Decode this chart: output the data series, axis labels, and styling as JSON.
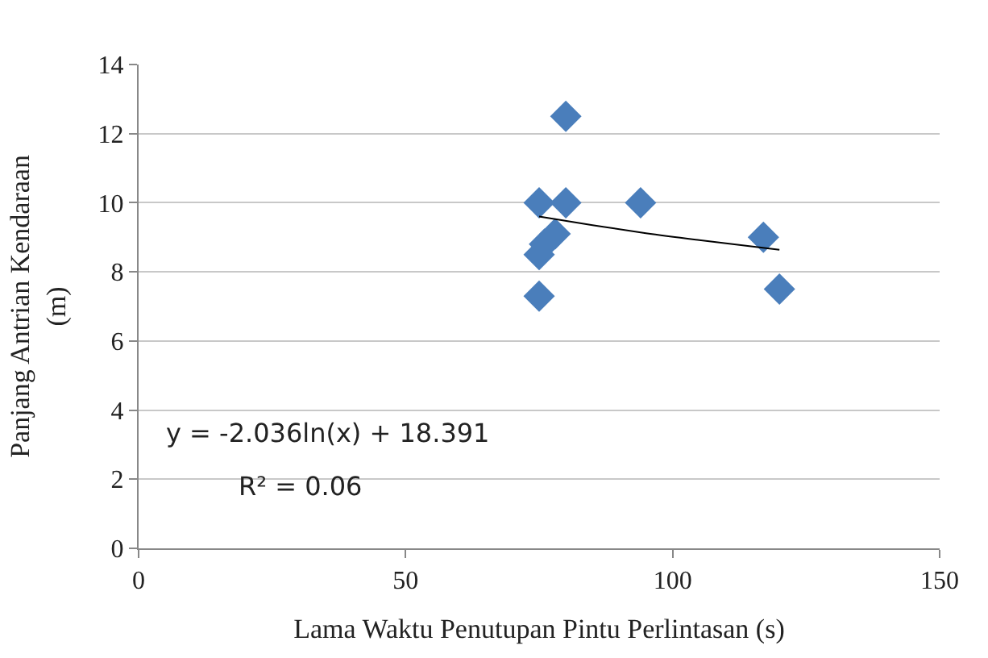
{
  "chart_data": {
    "type": "scatter",
    "xlabel": "Lama Waktu Penutupan Pintu Perlintasan (s)",
    "ylabel": "Panjang Antrian Kendaraan (m)",
    "xlim": [
      0,
      150
    ],
    "xticks": [
      0,
      50,
      100,
      150
    ],
    "ylim": [
      0,
      14
    ],
    "yticks": [
      0,
      2,
      4,
      6,
      8,
      10,
      12,
      14
    ],
    "grid": "y",
    "series": [
      {
        "marker": "diamond",
        "color": "#4a7ebb",
        "x": [
          80,
          75,
          80,
          94,
          117,
          120,
          75,
          75,
          76,
          78
        ],
        "values": [
          12.5,
          10,
          10,
          10,
          9,
          7.5,
          7.3,
          8.5,
          8.8,
          9.1
        ]
      },
      {
        "type": "line",
        "marker": "none",
        "color": "#000000",
        "x": [
          75,
          85,
          95,
          105,
          120
        ],
        "values": [
          9.6,
          9.35,
          9.12,
          8.92,
          8.64
        ]
      }
    ],
    "annotations": [
      "y = -2.036ln(x) + 18.391",
      "R² = 0.06"
    ]
  }
}
